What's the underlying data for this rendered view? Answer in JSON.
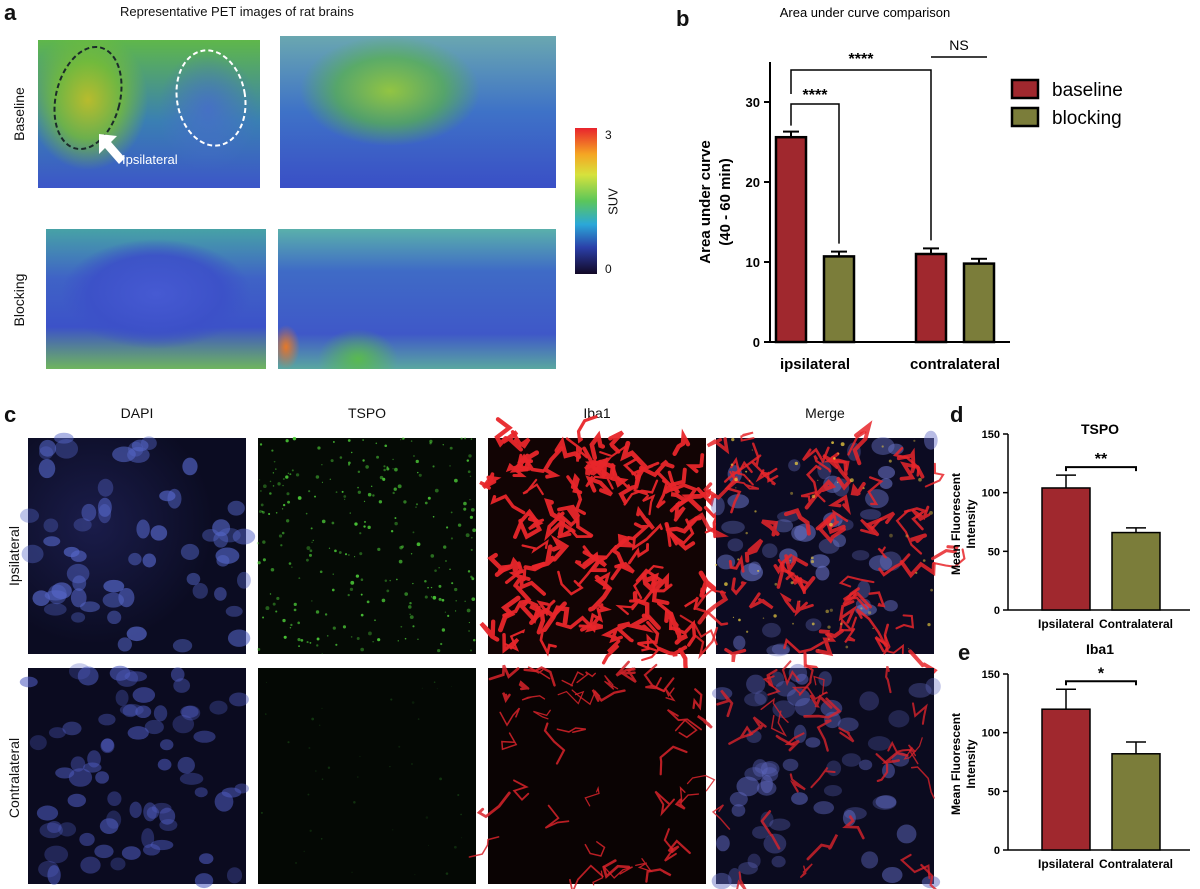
{
  "panel_a": {
    "letter": "a",
    "title": "Representative PET images of rat brains",
    "row_labels": [
      "Baseline",
      "Blocking"
    ],
    "arrow_label": "Ipsilateral",
    "colorbar": {
      "label": "SUV",
      "max": "3",
      "min": "0"
    }
  },
  "panel_b": {
    "letter": "b"
  },
  "panel_c": {
    "letter": "c",
    "columns": [
      "DAPI",
      "TSPO",
      "Iba1",
      "Merge"
    ],
    "rows": [
      "Ipsilateral",
      "Contralateral"
    ]
  },
  "panel_d": {
    "letter": "d"
  },
  "panel_e": {
    "letter": "e"
  },
  "colors": {
    "baseline": "#a0282e",
    "blocking": "#7b7d3a",
    "blue_tissue": "#3d4fc8",
    "green_signal": "#5bbf3a"
  },
  "chart_data": [
    {
      "id": "b",
      "type": "bar",
      "title": "Area under curve comparison",
      "ylabel": "Area under curve",
      "ylabel2": "(40 - 60 min)",
      "categories": [
        "ipsilateral",
        "contralateral"
      ],
      "series": [
        {
          "name": "baseline",
          "values": [
            25.6,
            11.0
          ],
          "errors": [
            0.7,
            0.7
          ]
        },
        {
          "name": "blocking",
          "values": [
            10.7,
            9.8
          ],
          "errors": [
            0.6,
            0.6
          ]
        }
      ],
      "ylim": [
        0,
        35
      ],
      "yticks": [
        "0",
        "10",
        "20",
        "30"
      ],
      "legend": "top-right",
      "annotations": [
        "****",
        "****",
        "NS"
      ]
    },
    {
      "id": "d",
      "type": "bar",
      "title": "TSPO",
      "ylabel": "Mean Fluorescent",
      "ylabel2": "Intensity",
      "categories": [
        "Ipsilateral",
        "Contralateral"
      ],
      "values": [
        104,
        66
      ],
      "errors": [
        11,
        4
      ],
      "ylim": [
        0,
        150
      ],
      "yticks": [
        "0",
        "50",
        "100",
        "150"
      ],
      "annotation": "**"
    },
    {
      "id": "e",
      "type": "bar",
      "title": "Iba1",
      "ylabel": "Mean Fluorescent",
      "ylabel2": "Intensity",
      "categories": [
        "Ipsilateral",
        "Contralateral"
      ],
      "values": [
        120,
        82
      ],
      "errors": [
        17,
        10
      ],
      "ylim": [
        0,
        150
      ],
      "yticks": [
        "0",
        "50",
        "100",
        "150"
      ],
      "annotation": "*"
    }
  ]
}
